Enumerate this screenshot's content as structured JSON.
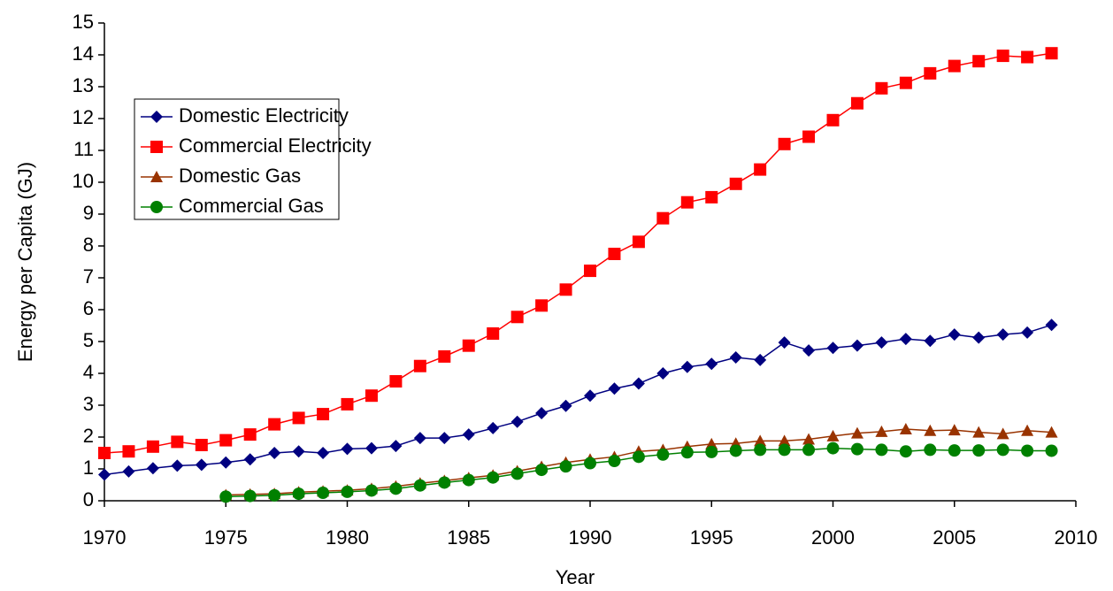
{
  "chart_data": {
    "type": "line",
    "x_label": "Year",
    "y_label": "Energy per Capita (GJ)",
    "x": [
      1970,
      1971,
      1972,
      1973,
      1974,
      1975,
      1976,
      1977,
      1978,
      1979,
      1980,
      1981,
      1982,
      1983,
      1984,
      1985,
      1986,
      1987,
      1988,
      1989,
      1990,
      1991,
      1992,
      1993,
      1994,
      1995,
      1996,
      1997,
      1998,
      1999,
      2000,
      2001,
      2002,
      2003,
      2004,
      2005,
      2006,
      2007,
      2008,
      2009
    ],
    "series": [
      {
        "name": "Domestic Electricity",
        "color": "#000080",
        "marker": "diamond",
        "values": [
          0.82,
          0.92,
          1.02,
          1.1,
          1.13,
          1.2,
          1.3,
          1.5,
          1.55,
          1.5,
          1.63,
          1.65,
          1.72,
          1.97,
          1.97,
          2.08,
          2.28,
          2.48,
          2.75,
          2.98,
          3.3,
          3.52,
          3.68,
          4.0,
          4.2,
          4.3,
          4.5,
          4.42,
          4.97,
          4.72,
          4.8,
          4.87,
          4.97,
          5.08,
          5.02,
          5.22,
          5.12,
          5.22,
          5.28,
          5.52
        ]
      },
      {
        "name": "Commercial Electricity",
        "color": "#ff0000",
        "marker": "square",
        "values": [
          1.5,
          1.55,
          1.7,
          1.85,
          1.75,
          1.9,
          2.08,
          2.4,
          2.6,
          2.72,
          3.03,
          3.3,
          3.75,
          4.23,
          4.53,
          4.87,
          5.25,
          5.77,
          6.13,
          6.63,
          7.22,
          7.75,
          8.13,
          8.87,
          9.37,
          9.53,
          9.95,
          10.4,
          11.2,
          11.43,
          11.95,
          12.48,
          12.95,
          13.12,
          13.42,
          13.65,
          13.8,
          13.97,
          13.93,
          14.05
        ]
      },
      {
        "name": "Domestic Gas",
        "color": "#993300",
        "marker": "triangle",
        "values": [
          null,
          null,
          null,
          null,
          null,
          0.18,
          0.2,
          0.22,
          0.27,
          0.3,
          0.33,
          0.38,
          0.45,
          0.55,
          0.63,
          0.72,
          0.8,
          0.93,
          1.07,
          1.2,
          1.3,
          1.38,
          1.55,
          1.6,
          1.7,
          1.78,
          1.8,
          1.88,
          1.88,
          1.93,
          2.03,
          2.12,
          2.17,
          2.25,
          2.2,
          2.22,
          2.15,
          2.1,
          2.2,
          2.15
        ]
      },
      {
        "name": "Commercial Gas",
        "color": "#008000",
        "marker": "circle",
        "values": [
          null,
          null,
          null,
          null,
          null,
          0.13,
          0.15,
          0.17,
          0.22,
          0.25,
          0.28,
          0.32,
          0.38,
          0.48,
          0.57,
          0.65,
          0.73,
          0.85,
          0.97,
          1.08,
          1.18,
          1.25,
          1.38,
          1.45,
          1.52,
          1.53,
          1.57,
          1.6,
          1.6,
          1.6,
          1.65,
          1.62,
          1.6,
          1.55,
          1.6,
          1.58,
          1.58,
          1.6,
          1.57,
          1.57
        ]
      }
    ],
    "xlim": [
      1970,
      2010
    ],
    "xticks": [
      1970,
      1975,
      1980,
      1985,
      1990,
      1995,
      2000,
      2005,
      2010
    ],
    "ylim": [
      0,
      15
    ],
    "yticks": [
      0,
      1,
      2,
      3,
      4,
      5,
      6,
      7,
      8,
      9,
      10,
      11,
      12,
      13,
      14,
      15
    ],
    "grid": false,
    "legend": "upper left"
  }
}
